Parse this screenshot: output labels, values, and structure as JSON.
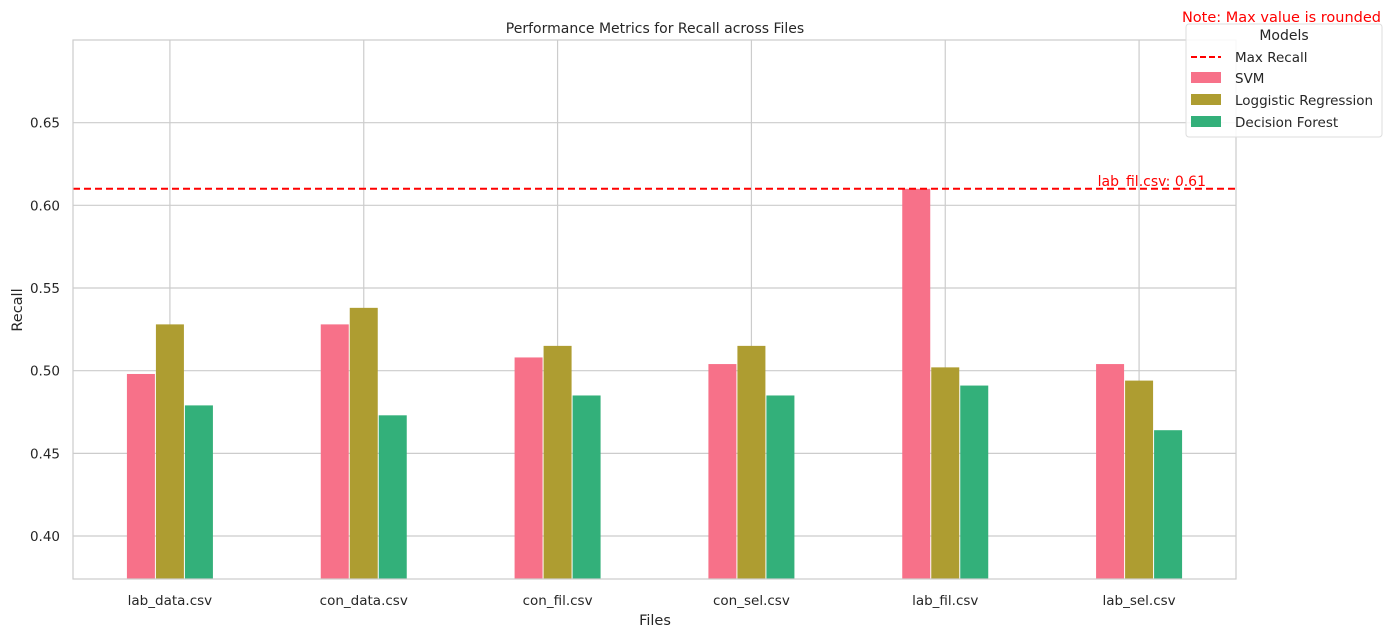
{
  "chart_data": {
    "type": "bar",
    "title": "Performance Metrics for Recall across Files",
    "xlabel": "Files",
    "ylabel": "Recall",
    "categories": [
      "lab_data.csv",
      "con_data.csv",
      "con_fil.csv",
      "con_sel.csv",
      "lab_fil.csv",
      "lab_sel.csv"
    ],
    "series": [
      {
        "name": "SVM",
        "color": "#f77189",
        "values": [
          0.498,
          0.528,
          0.508,
          0.504,
          0.61,
          0.504
        ]
      },
      {
        "name": "Loggistic Regression",
        "color": "#ae9d31",
        "values": [
          0.528,
          0.538,
          0.515,
          0.515,
          0.502,
          0.494
        ]
      },
      {
        "name": "Decision Forest",
        "color": "#33b07a",
        "values": [
          0.479,
          0.473,
          0.485,
          0.485,
          0.491,
          0.464
        ]
      }
    ],
    "ylim": [
      0.374,
      0.7
    ],
    "yticks": [
      "0.40",
      "0.45",
      "0.50",
      "0.55",
      "0.60",
      "0.65"
    ],
    "grid": true,
    "max_line": {
      "value": 0.61,
      "label": "Max Recall",
      "annotation": "lab_fil.csv: 0.61",
      "color": "#ff0000"
    },
    "note": "Note: Max value is rounded",
    "legend": {
      "title": "Models",
      "placement": "outside-top-right"
    }
  }
}
